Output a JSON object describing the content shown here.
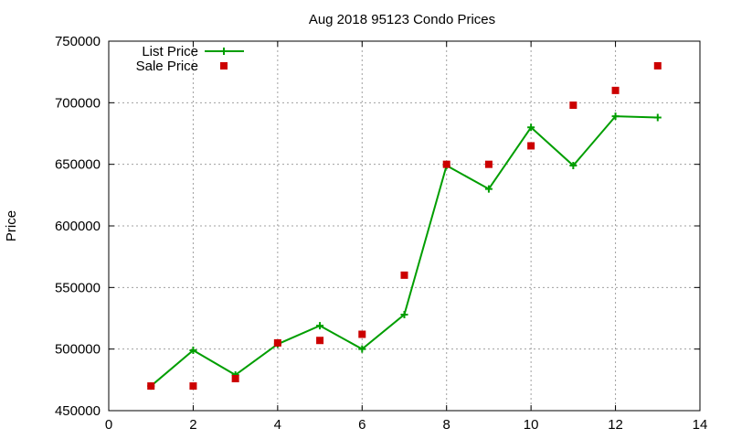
{
  "chart_data": {
    "type": "line",
    "title": "Aug 2018 95123 Condo Prices",
    "xlabel": "",
    "ylabel": "Price",
    "xlim": [
      0,
      14
    ],
    "ylim": [
      450000,
      750000
    ],
    "xticks": [
      0,
      2,
      4,
      6,
      8,
      10,
      12,
      14
    ],
    "yticks": [
      450000,
      500000,
      550000,
      600000,
      650000,
      700000,
      750000
    ],
    "grid": true,
    "legend_position": "top-left",
    "series": [
      {
        "name": "List Price",
        "style": "line-with-plus-markers",
        "color": "#009e00",
        "x": [
          1,
          2,
          3,
          4,
          5,
          6,
          7,
          8,
          9,
          10,
          11,
          12,
          13
        ],
        "y": [
          470000,
          499000,
          479000,
          504000,
          519000,
          500000,
          528000,
          649000,
          630000,
          680000,
          649000,
          689000,
          688000
        ]
      },
      {
        "name": "Sale Price",
        "style": "square-markers",
        "color": "#cc0000",
        "x": [
          1,
          2,
          3,
          4,
          5,
          6,
          7,
          8,
          9,
          10,
          11,
          12,
          13
        ],
        "y": [
          470000,
          470000,
          476000,
          505000,
          507000,
          512000,
          560000,
          650000,
          650000,
          665000,
          698000,
          710000,
          730000
        ]
      }
    ]
  }
}
